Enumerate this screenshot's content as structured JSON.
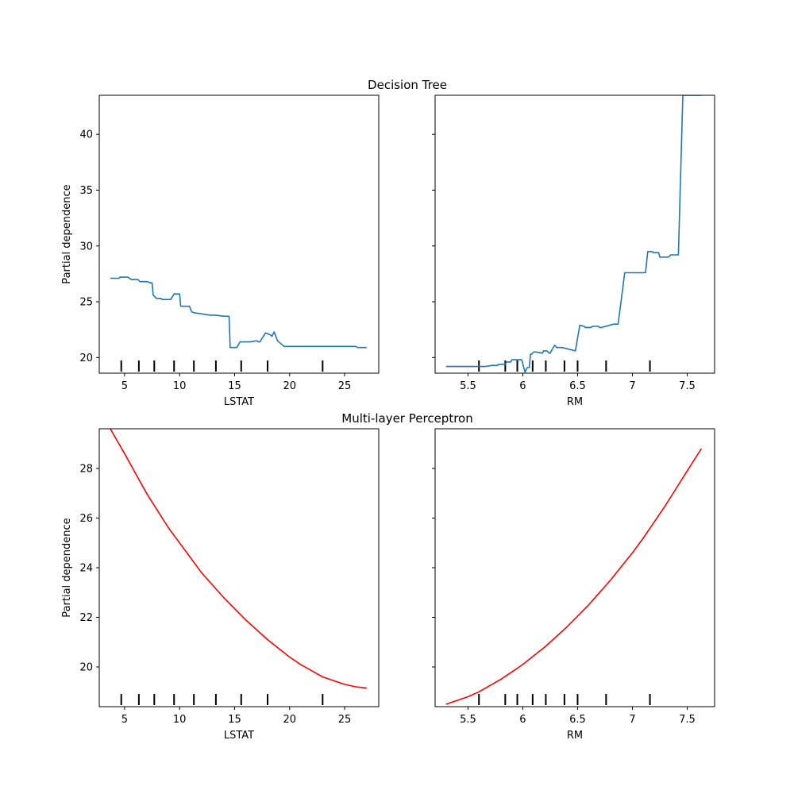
{
  "figure_titles": [
    "Decision Tree",
    "Multi-layer Perceptron"
  ],
  "colors": {
    "decision_tree": "#1f77b4",
    "mlp": "#ff0000",
    "deciles": "#000000"
  },
  "chart_data": [
    {
      "type": "line",
      "group": "Decision Tree",
      "title": "",
      "xlabel": "LSTAT",
      "ylabel": "Partial dependence",
      "xlim": [
        2.7,
        28.1
      ],
      "ylim": [
        18.6,
        43.5
      ],
      "xticks": [
        5,
        10,
        15,
        20,
        25
      ],
      "yticks": [
        20,
        25,
        30,
        35,
        40
      ],
      "show_yticklabels": true,
      "grid": false,
      "color": "#1f77b4",
      "deciles": [
        4.7,
        6.3,
        7.7,
        9.5,
        11.3,
        13.3,
        15.6,
        18.0,
        23.0
      ],
      "x": [
        3.7,
        4.5,
        4.6,
        5.3,
        5.6,
        6.2,
        6.4,
        7.1,
        7.3,
        7.5,
        7.6,
        7.9,
        8.3,
        8.4,
        9.2,
        9.5,
        10.0,
        10.1,
        10.9,
        11.1,
        11.4,
        12.8,
        13.2,
        14.1,
        14.5,
        14.6,
        15.2,
        15.5,
        16.4,
        17.0,
        17.2,
        17.3,
        17.8,
        18.1,
        18.3,
        18.4,
        18.6,
        18.9,
        19.5,
        20.8,
        22.0,
        22.3,
        23.5,
        26.0,
        26.2,
        27.0
      ],
      "values": [
        27.1,
        27.1,
        27.2,
        27.2,
        27.0,
        27.0,
        26.8,
        26.8,
        26.7,
        26.7,
        25.6,
        25.3,
        25.3,
        25.2,
        25.2,
        25.7,
        25.7,
        24.6,
        24.6,
        24.1,
        24.0,
        23.8,
        23.8,
        23.7,
        23.7,
        20.9,
        20.9,
        21.4,
        21.4,
        21.5,
        21.4,
        21.4,
        22.2,
        22.1,
        22.0,
        21.9,
        22.3,
        21.5,
        21.0,
        21.0,
        21.0,
        21.0,
        21.0,
        21.0,
        20.9,
        20.9
      ]
    },
    {
      "type": "line",
      "group": "Decision Tree",
      "title": "",
      "xlabel": "RM",
      "ylabel": "",
      "xlim": [
        5.2,
        7.75
      ],
      "ylim": [
        18.6,
        43.5
      ],
      "xticks": [
        5.5,
        6.0,
        6.5,
        7.0,
        7.5
      ],
      "yticks": [
        20,
        25,
        30,
        35,
        40
      ],
      "show_yticklabels": false,
      "grid": false,
      "color": "#1f77b4",
      "deciles": [
        5.6,
        5.84,
        5.95,
        6.09,
        6.21,
        6.38,
        6.5,
        6.76,
        7.16
      ],
      "x": [
        5.3,
        5.62,
        5.66,
        5.72,
        5.77,
        5.78,
        5.84,
        5.85,
        5.89,
        5.9,
        5.99,
        6.02,
        6.04,
        6.06,
        6.07,
        6.08,
        6.1,
        6.12,
        6.18,
        6.19,
        6.22,
        6.24,
        6.25,
        6.29,
        6.31,
        6.34,
        6.36,
        6.48,
        6.52,
        6.56,
        6.57,
        6.62,
        6.64,
        6.69,
        6.7,
        6.72,
        6.83,
        6.87,
        6.93,
        6.94,
        7.12,
        7.14,
        7.18,
        7.19,
        7.24,
        7.25,
        7.33,
        7.35,
        7.42,
        7.46,
        7.48,
        7.63
      ],
      "values": [
        19.2,
        19.2,
        19.2,
        19.3,
        19.3,
        19.4,
        19.4,
        19.6,
        19.6,
        19.8,
        19.8,
        18.7,
        19.1,
        19.1,
        20.3,
        20.3,
        20.5,
        20.5,
        20.4,
        20.6,
        20.6,
        20.4,
        20.4,
        21.1,
        20.9,
        20.9,
        20.9,
        20.6,
        22.9,
        22.8,
        22.7,
        22.7,
        22.8,
        22.8,
        22.7,
        22.7,
        23.0,
        23.0,
        27.6,
        27.6,
        27.6,
        29.5,
        29.5,
        29.4,
        29.4,
        29.0,
        29.0,
        29.2,
        29.2,
        43.5,
        43.5,
        43.5
      ]
    },
    {
      "type": "line",
      "group": "Multi-layer Perceptron",
      "title": "",
      "xlabel": "LSTAT",
      "ylabel": "Partial dependence",
      "xlim": [
        2.7,
        28.1
      ],
      "ylim": [
        18.4,
        29.6
      ],
      "xticks": [
        5,
        10,
        15,
        20,
        25
      ],
      "yticks": [
        20,
        22,
        24,
        26,
        28
      ],
      "show_yticklabels": true,
      "grid": false,
      "color": "#ff0000",
      "deciles": [
        4.7,
        6.3,
        7.7,
        9.5,
        11.3,
        13.3,
        15.6,
        18.0,
        23.0
      ],
      "x": [
        3.7,
        5.0,
        6.0,
        7.0,
        8.0,
        9.0,
        10.0,
        11.0,
        12.0,
        13.0,
        14.0,
        15.0,
        16.0,
        17.0,
        18.0,
        19.0,
        20.0,
        21.0,
        22.0,
        23.0,
        24.0,
        25.0,
        26.0,
        27.0
      ],
      "values": [
        29.6,
        28.6,
        27.8,
        27.0,
        26.3,
        25.6,
        25.0,
        24.4,
        23.8,
        23.3,
        22.8,
        22.35,
        21.9,
        21.5,
        21.1,
        20.75,
        20.4,
        20.1,
        19.85,
        19.6,
        19.45,
        19.3,
        19.2,
        19.15
      ]
    },
    {
      "type": "line",
      "group": "Multi-layer Perceptron",
      "title": "",
      "xlabel": "RM",
      "ylabel": "",
      "xlim": [
        5.2,
        7.75
      ],
      "ylim": [
        18.4,
        29.6
      ],
      "xticks": [
        5.5,
        6.0,
        6.5,
        7.0,
        7.5
      ],
      "yticks": [
        20,
        22,
        24,
        26,
        28
      ],
      "show_yticklabels": false,
      "grid": false,
      "color": "#ff0000",
      "deciles": [
        5.6,
        5.84,
        5.95,
        6.09,
        6.21,
        6.38,
        6.5,
        6.76,
        7.16
      ],
      "x": [
        5.3,
        5.4,
        5.5,
        5.6,
        5.7,
        5.8,
        5.9,
        6.0,
        6.1,
        6.2,
        6.3,
        6.4,
        6.5,
        6.6,
        6.7,
        6.8,
        6.9,
        7.0,
        7.1,
        7.2,
        7.3,
        7.4,
        7.5,
        7.63
      ],
      "values": [
        18.5,
        18.65,
        18.8,
        19.0,
        19.25,
        19.5,
        19.8,
        20.1,
        20.45,
        20.8,
        21.2,
        21.6,
        22.05,
        22.5,
        23.0,
        23.5,
        24.05,
        24.6,
        25.2,
        25.85,
        26.5,
        27.2,
        27.9,
        28.8
      ]
    }
  ]
}
